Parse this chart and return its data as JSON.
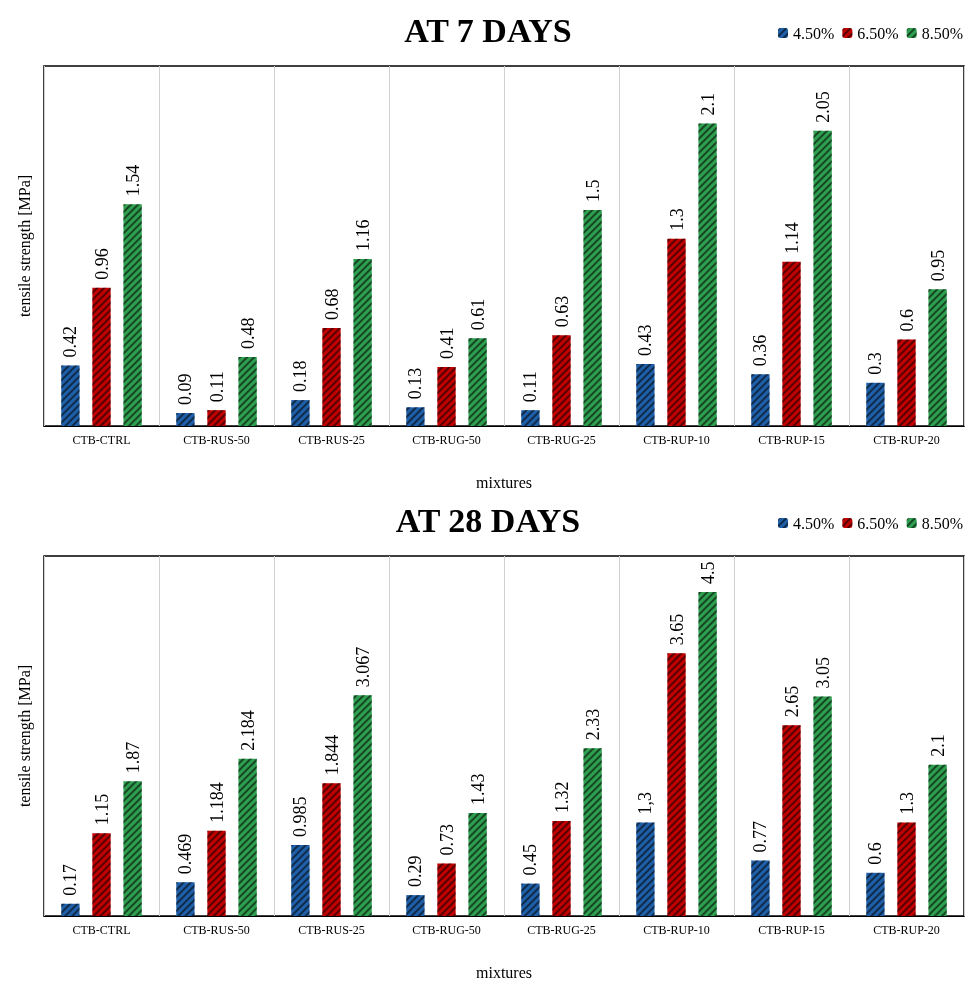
{
  "chart_data": [
    {
      "type": "bar",
      "title": "AT 7 DAYS",
      "xlabel": "mixtures",
      "ylabel": "tensile strength [MPa]",
      "categories": [
        "CTB-CTRL",
        "CTB-RUS-50",
        "CTB-RUS-25",
        "CTB-RUG-50",
        "CTB-RUG-25",
        "CTB-RUP-10",
        "CTB-RUP-15",
        "CTB-RUP-20"
      ],
      "series": [
        {
          "name": "4.50%",
          "color": "#1f5fa8",
          "values": [
            0.42,
            0.09,
            0.18,
            0.13,
            0.11,
            0.43,
            0.36,
            0.3
          ]
        },
        {
          "name": "6.50%",
          "color": "#c00000",
          "values": [
            0.96,
            0.11,
            0.68,
            0.41,
            0.63,
            1.3,
            1.14,
            0.6
          ]
        },
        {
          "name": "8.50%",
          "color": "#2e9e4f",
          "values": [
            1.54,
            0.48,
            1.16,
            0.61,
            1.5,
            2.1,
            2.05,
            0.95
          ]
        }
      ],
      "data_labels": true,
      "grid": "x",
      "legend": "top right",
      "tick_labels": "x"
    },
    {
      "type": "bar",
      "title": "AT 28 DAYS",
      "xlabel": "mixtures",
      "ylabel": "tensile strength [MPa]",
      "categories": [
        "CTB-CTRL",
        "CTB-RUS-50",
        "CTB-RUS-25",
        "CTB-RUG-50",
        "CTB-RUG-25",
        "CTB-RUP-10",
        "CTB-RUP-15",
        "CTB-RUP-20"
      ],
      "series": [
        {
          "name": "4.50%",
          "color": "#1f5fa8",
          "values": [
            0.17,
            0.469,
            0.985,
            0.29,
            0.45,
            1.3,
            0.77,
            0.6
          ],
          "value_labels": [
            "0.17",
            "0.469",
            "0.985",
            "0.29",
            "0.45",
            "1,3",
            "0.77",
            "0.6"
          ]
        },
        {
          "name": "6.50%",
          "color": "#c00000",
          "values": [
            1.15,
            1.184,
            1.844,
            0.73,
            1.32,
            3.65,
            2.65,
            1.3
          ],
          "value_labels": [
            "1.15",
            "1.184",
            "1.844",
            "0.73",
            "1.32",
            "3.65",
            "2.65",
            "1.3"
          ]
        },
        {
          "name": "8.50%",
          "color": "#2e9e4f",
          "values": [
            1.87,
            2.184,
            3.067,
            1.43,
            2.33,
            4.5,
            3.05,
            2.1
          ],
          "value_labels": [
            "1.87",
            "2.184",
            "3.067",
            "1.43",
            "2.33",
            "4.5",
            "3.05",
            "2.1"
          ]
        }
      ],
      "grid": "x",
      "legend": "top right",
      "tick_labels": "x"
    }
  ]
}
